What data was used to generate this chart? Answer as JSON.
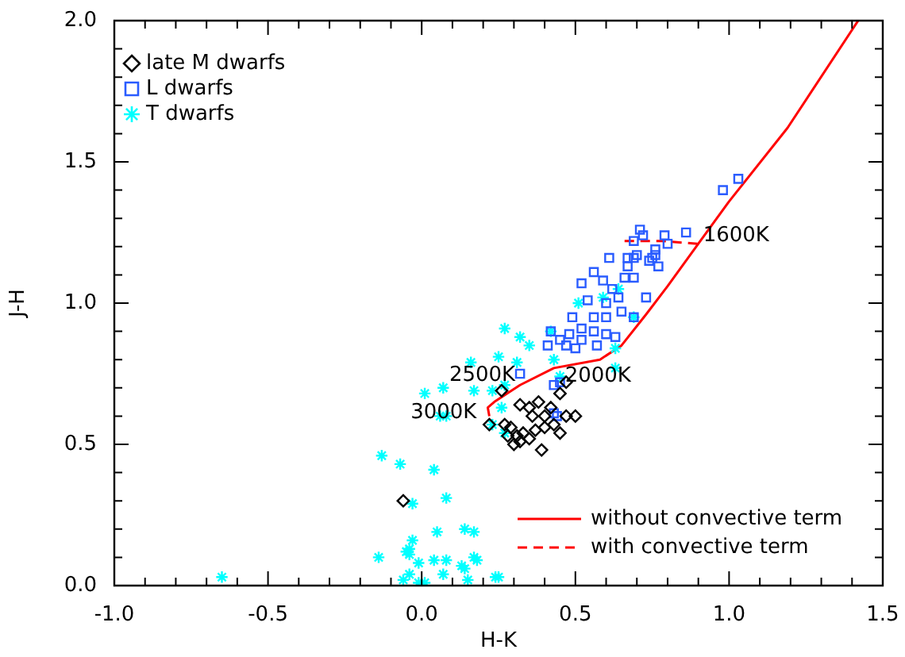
{
  "chart_data": {
    "type": "scatter",
    "xlabel": "H-K",
    "ylabel": "J-H",
    "legend": "bottom left",
    "xlim": [
      -1,
      1.5
    ],
    "ylim": [
      0,
      2
    ],
    "xticks": [
      {
        "value": -1,
        "label": "-1.0"
      },
      {
        "value": -0.9,
        "label": null
      },
      {
        "value": -0.8,
        "label": null
      },
      {
        "value": -0.7,
        "label": null
      },
      {
        "value": -0.6,
        "label": null
      },
      {
        "value": -0.5,
        "label": "-0.5"
      },
      {
        "value": -0.4,
        "label": null
      },
      {
        "value": -0.3,
        "label": null
      },
      {
        "value": -0.2,
        "label": null
      },
      {
        "value": -0.1,
        "label": null
      },
      {
        "value": 0,
        "label": "0.0"
      },
      {
        "value": 0.1,
        "label": null
      },
      {
        "value": 0.2,
        "label": null
      },
      {
        "value": 0.3,
        "label": null
      },
      {
        "value": 0.4,
        "label": null
      },
      {
        "value": 0.5,
        "label": "0.5"
      },
      {
        "value": 0.6,
        "label": null
      },
      {
        "value": 0.7,
        "label": null
      },
      {
        "value": 0.8,
        "label": null
      },
      {
        "value": 0.9,
        "label": null
      },
      {
        "value": 1,
        "label": "1.0"
      },
      {
        "value": 1.1,
        "label": null
      },
      {
        "value": 1.2,
        "label": null
      },
      {
        "value": 1.3,
        "label": null
      },
      {
        "value": 1.4,
        "label": null
      },
      {
        "value": 1.5,
        "label": "1.5"
      }
    ],
    "yticks": [
      {
        "value": 0,
        "label": "0.0"
      },
      {
        "value": 0.1,
        "label": null
      },
      {
        "value": 0.2,
        "label": null
      },
      {
        "value": 0.3,
        "label": null
      },
      {
        "value": 0.4,
        "label": null
      },
      {
        "value": 0.5,
        "label": "0.5"
      },
      {
        "value": 0.6,
        "label": null
      },
      {
        "value": 0.7,
        "label": null
      },
      {
        "value": 0.8,
        "label": null
      },
      {
        "value": 0.9,
        "label": null
      },
      {
        "value": 1,
        "label": "1.0"
      },
      {
        "value": 1.1,
        "label": null
      },
      {
        "value": 1.2,
        "label": null
      },
      {
        "value": 1.3,
        "label": null
      },
      {
        "value": 1.4,
        "label": null
      },
      {
        "value": 1.5,
        "label": "1.5"
      },
      {
        "value": 1.6,
        "label": null
      },
      {
        "value": 1.7,
        "label": null
      },
      {
        "value": 1.8,
        "label": null
      },
      {
        "value": 1.9,
        "label": null
      },
      {
        "value": 2,
        "label": "2.0"
      }
    ],
    "series": [
      {
        "name": "late M dwarfs",
        "type": "scatter",
        "marker": "diamond",
        "color": "#000000",
        "x": [
          0.26,
          0.32,
          0.35,
          0.38,
          0.42,
          0.45,
          0.47,
          0.36,
          0.4,
          0.22,
          0.27,
          0.29,
          0.31,
          0.33,
          0.37,
          0.4,
          0.43,
          0.47,
          0.5,
          0.45,
          0.3,
          0.32,
          0.35,
          0.28,
          0.39,
          -0.06
        ],
        "values": [
          0.69,
          0.64,
          0.63,
          0.65,
          0.63,
          0.68,
          0.72,
          0.6,
          0.6,
          0.57,
          0.57,
          0.56,
          0.53,
          0.54,
          0.55,
          0.56,
          0.57,
          0.6,
          0.6,
          0.54,
          0.5,
          0.51,
          0.52,
          0.53,
          0.48,
          0.3
        ]
      },
      {
        "name": "L dwarfs",
        "type": "scatter",
        "marker": "square",
        "color": "#2a5cff",
        "x": [
          0.98,
          1.03,
          0.86,
          0.79,
          0.8,
          0.71,
          0.72,
          0.69,
          0.76,
          0.75,
          0.69,
          0.67,
          0.61,
          0.67,
          0.7,
          0.76,
          0.77,
          0.74,
          0.56,
          0.52,
          0.59,
          0.66,
          0.69,
          0.62,
          0.54,
          0.6,
          0.64,
          0.73,
          0.49,
          0.56,
          0.6,
          0.65,
          0.69,
          0.42,
          0.48,
          0.52,
          0.56,
          0.6,
          0.47,
          0.52,
          0.57,
          0.41,
          0.45,
          0.5,
          0.63,
          0.32,
          0.43,
          0.45,
          0.43,
          0.44
        ],
        "values": [
          1.4,
          1.44,
          1.25,
          1.24,
          1.21,
          1.26,
          1.24,
          1.22,
          1.19,
          1.16,
          1.16,
          1.16,
          1.16,
          1.13,
          1.17,
          1.17,
          1.13,
          1.15,
          1.11,
          1.07,
          1.08,
          1.09,
          1.09,
          1.05,
          1.01,
          1,
          1.02,
          1.02,
          0.95,
          0.95,
          0.95,
          0.97,
          0.95,
          0.9,
          0.89,
          0.91,
          0.9,
          0.89,
          0.85,
          0.87,
          0.85,
          0.85,
          0.87,
          0.84,
          0.88,
          0.75,
          0.71,
          0.72,
          0.61,
          0.6
        ]
      },
      {
        "name": "T dwarfs",
        "type": "scatter",
        "marker": "cross",
        "color": "#00ffff",
        "x": [
          0.27,
          0.32,
          0.35,
          0.16,
          0.25,
          0.31,
          0.07,
          0.01,
          0.17,
          0.23,
          0.27,
          0.06,
          0.08,
          0.26,
          0.23,
          0.27,
          0.42,
          0.43,
          0.51,
          0.59,
          0.64,
          0.69,
          0.63,
          0.63,
          0.45,
          -0.13,
          -0.07,
          0.04,
          0.08,
          -0.03,
          0.05,
          0.14,
          -0.03,
          -0.04,
          -0.14,
          -0.04,
          -0.01,
          0.04,
          0.08,
          0.13,
          0.17,
          0.07,
          0.15,
          -0.04,
          -0.06,
          -0.01,
          -0.65,
          0.25,
          0.17,
          -0.05,
          0.14,
          0.18,
          0.24,
          0.01
        ],
        "values": [
          0.91,
          0.88,
          0.85,
          0.79,
          0.81,
          0.79,
          0.7,
          0.68,
          0.69,
          0.69,
          0.71,
          0.6,
          0.6,
          0.63,
          0.57,
          0.54,
          0.9,
          0.8,
          1,
          1.02,
          1.05,
          0.95,
          0.84,
          0.77,
          0.74,
          0.46,
          0.43,
          0.41,
          0.31,
          0.29,
          0.19,
          0.2,
          0.16,
          0.13,
          0.1,
          0.11,
          0.08,
          0.09,
          0.09,
          0.07,
          0.1,
          0.04,
          0.02,
          0.04,
          0.02,
          0.01,
          0.03,
          0.03,
          0.19,
          0.12,
          0.06,
          0.09,
          0.03,
          0.01
        ]
      },
      {
        "name": "without convective term",
        "type": "line",
        "marker": "none",
        "line_style": "solid",
        "color": "#ff0000",
        "x": [
          0.22,
          0.215,
          0.236,
          0.32,
          0.43,
          0.58,
          0.65,
          0.73,
          0.8,
          0.9,
          1,
          1.19,
          1.42
        ],
        "values": [
          0.6,
          0.63,
          0.65,
          0.71,
          0.77,
          0.8,
          0.85,
          0.96,
          1.06,
          1.21,
          1.36,
          1.62,
          2
        ]
      },
      {
        "name": "with convective term",
        "type": "line",
        "marker": "none",
        "line_style": "dashed",
        "color": "#ff0000",
        "x": [
          0.66,
          0.78,
          0.9
        ],
        "values": [
          1.22,
          1.22,
          1.21
        ]
      }
    ],
    "annotations": [
      {
        "text": "3000K",
        "x": 0.22,
        "y": 0.6
      },
      {
        "text": "2500K",
        "x": 0.32,
        "y": 0.71
      },
      {
        "text": "2000K",
        "x": 0.43,
        "y": 0.77
      },
      {
        "text": "1600K",
        "x": 0.9,
        "y": 1.21
      }
    ]
  }
}
